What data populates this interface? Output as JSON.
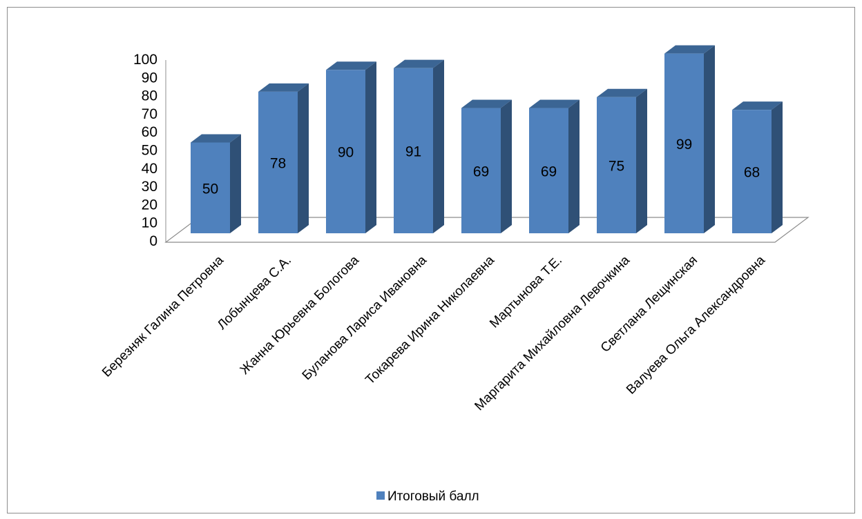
{
  "chart_data": {
    "type": "bar",
    "three_d": true,
    "categories": [
      "Березняк Галина Петровна",
      "Лобынцева С.А.",
      "Жанна Юрьевна Бологова",
      "Буланова Лариса Ивановна",
      "Токарева Ирина Николаевна",
      "Мартынова Т.Е.",
      "Маргарита Михайловна Левочкина",
      "Светлана Лещинская",
      "Валуева Ольга Александровна"
    ],
    "series": [
      {
        "name": "Итоговый балл",
        "values": [
          50,
          78,
          90,
          91,
          69,
          69,
          75,
          99,
          68
        ]
      }
    ],
    "y_ticks": [
      "0",
      "10",
      "20",
      "30",
      "40",
      "50",
      "60",
      "70",
      "80",
      "90",
      "100"
    ],
    "ylim": [
      0,
      100
    ],
    "data_labels": true,
    "grid": false,
    "legend_position": "bottom",
    "colors": {
      "bar_front": "#4f81bd",
      "bar_side": "#2f5076",
      "bar_top": "#3b6594",
      "floor": "#8c8c8c"
    }
  }
}
